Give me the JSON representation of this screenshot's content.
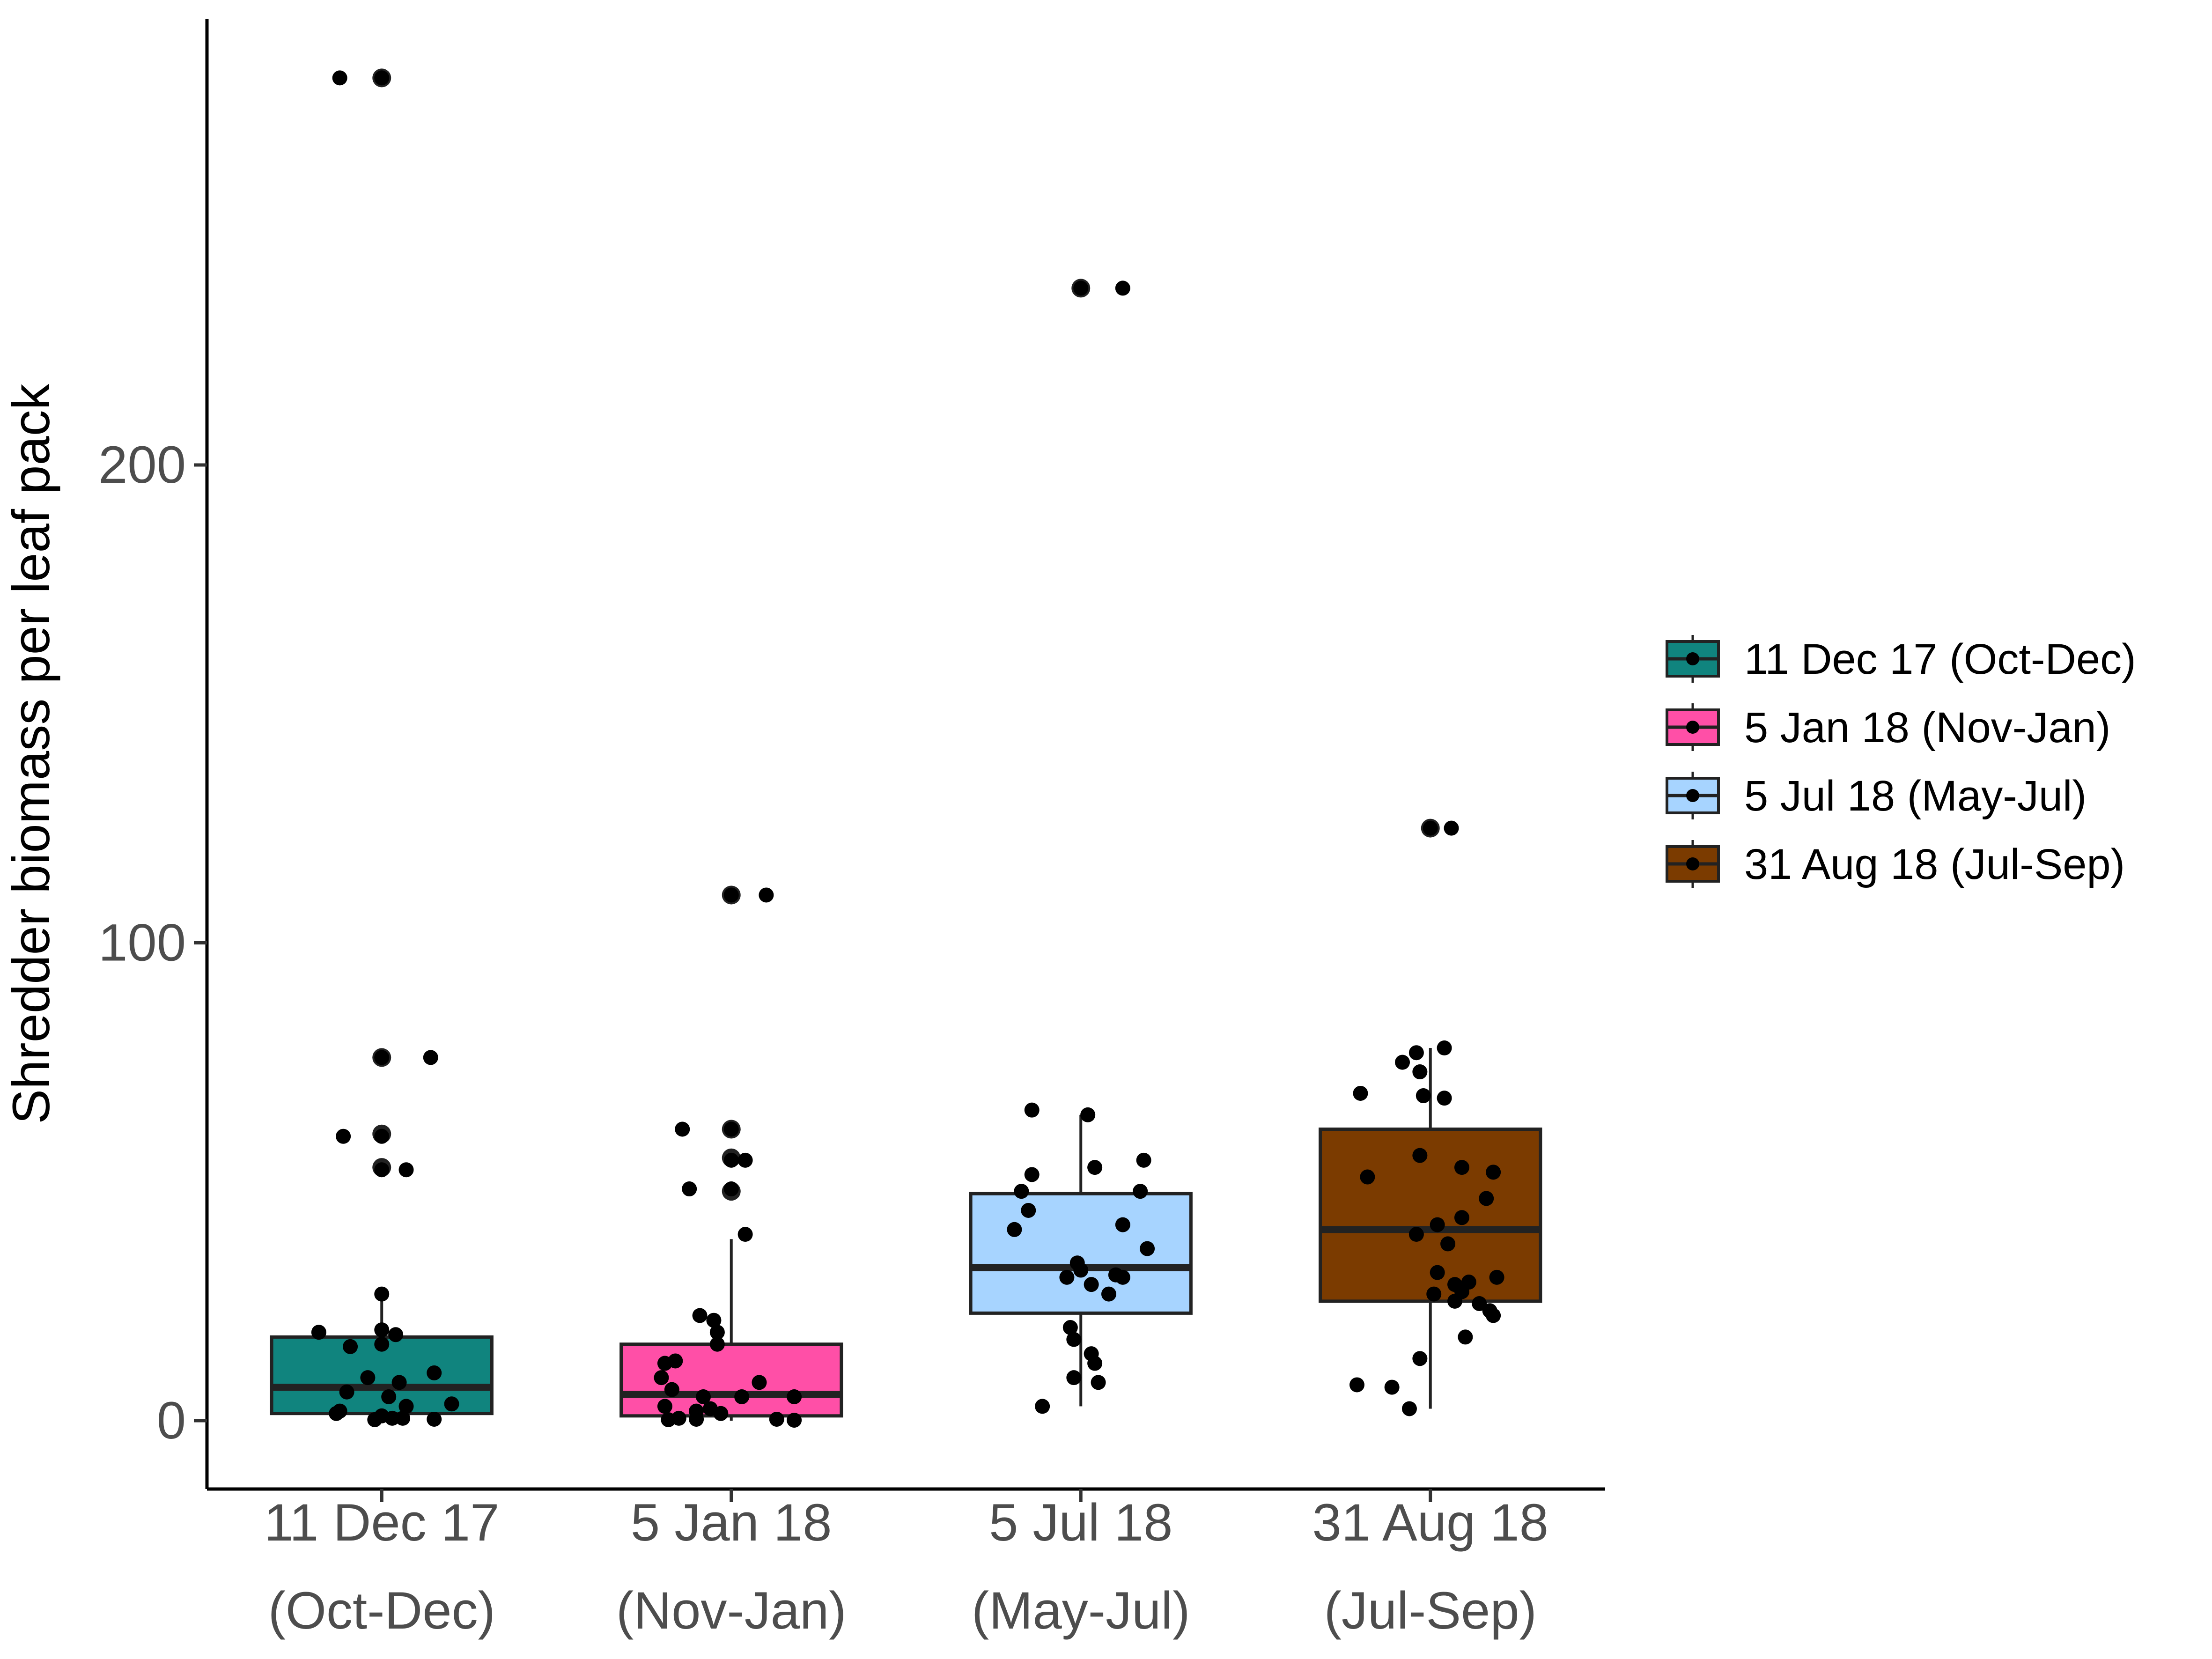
{
  "chart_data": {
    "type": "boxplot",
    "title": "",
    "xlabel": "",
    "ylabel": "Shredder biomass per leaf pack",
    "ylim": [
      -14,
      293
    ],
    "y_ticks": [
      0,
      100,
      200
    ],
    "grid": false,
    "legend_position": "right",
    "categories": [
      {
        "line1": "11 Dec 17",
        "line2": "(Oct-Dec)"
      },
      {
        "line1": "5 Jan 18",
        "line2": "(Nov-Jan)"
      },
      {
        "line1": "5 Jul 18",
        "line2": "(May-Jul)"
      },
      {
        "line1": "31 Aug 18",
        "line2": "(Jul-Sep)"
      }
    ],
    "series": [
      {
        "name": "11 Dec 17 (Oct-Dec)",
        "color": "#10847e",
        "q1": 1.5,
        "median": 7,
        "q3": 17.5,
        "whisker_low": 0,
        "whisker_high": 26,
        "outliers": [
          281,
          76,
          60,
          53
        ],
        "points": [
          [
            -0.12,
            281
          ],
          [
            0.0,
            281
          ],
          [
            0.14,
            76
          ],
          [
            0.0,
            76
          ],
          [
            -0.11,
            59.5
          ],
          [
            0.0,
            59.5
          ],
          [
            0.07,
            52.5
          ],
          [
            0.0,
            52.5
          ],
          [
            0.0,
            26.5
          ],
          [
            -0.18,
            18.5
          ],
          [
            0.0,
            19
          ],
          [
            0.04,
            18
          ],
          [
            -0.09,
            15.5
          ],
          [
            0.0,
            16
          ],
          [
            0.15,
            10
          ],
          [
            -0.04,
            9
          ],
          [
            0.05,
            8
          ],
          [
            -0.1,
            6
          ],
          [
            0.02,
            5
          ],
          [
            0.2,
            3.5
          ],
          [
            0.07,
            3
          ],
          [
            -0.12,
            2
          ],
          [
            -0.13,
            1.5
          ],
          [
            0.0,
            1
          ],
          [
            0.06,
            0.5
          ],
          [
            0.03,
            0.5
          ],
          [
            -0.02,
            0.2
          ],
          [
            0.15,
            0.3
          ]
        ]
      },
      {
        "name": "5 Jan 18 (Nov-Jan)",
        "color": "#ff4fa7",
        "q1": 1,
        "median": 5.5,
        "q3": 16,
        "whisker_low": 0,
        "whisker_high": 38,
        "outliers": [
          110,
          61,
          55,
          48
        ],
        "points": [
          [
            0.0,
            110
          ],
          [
            0.1,
            110
          ],
          [
            -0.14,
            61
          ],
          [
            0.0,
            61
          ],
          [
            0.0,
            54.5
          ],
          [
            0.04,
            54.5
          ],
          [
            -0.12,
            48.5
          ],
          [
            0.0,
            48.5
          ],
          [
            0.04,
            39
          ],
          [
            -0.09,
            22
          ],
          [
            -0.05,
            21
          ],
          [
            -0.04,
            18.5
          ],
          [
            -0.04,
            16
          ],
          [
            -0.16,
            12.5
          ],
          [
            -0.19,
            12
          ],
          [
            -0.2,
            9
          ],
          [
            0.08,
            8
          ],
          [
            -0.17,
            6.5
          ],
          [
            -0.08,
            5
          ],
          [
            0.03,
            5
          ],
          [
            0.18,
            5
          ],
          [
            -0.19,
            3
          ],
          [
            -0.06,
            2.5
          ],
          [
            -0.1,
            2
          ],
          [
            -0.03,
            1.5
          ],
          [
            -0.15,
            0.5
          ],
          [
            -0.18,
            0.2
          ],
          [
            -0.1,
            0.3
          ],
          [
            0.13,
            0.3
          ],
          [
            0.18,
            0.1
          ]
        ]
      },
      {
        "name": "5 Jul 18 (May-Jul)",
        "color": "#a7d4ff",
        "q1": 22.5,
        "median": 32,
        "q3": 47.5,
        "whisker_low": 3,
        "whisker_high": 64,
        "outliers": [
          237
        ],
        "points": [
          [
            0.0,
            237
          ],
          [
            0.12,
            237
          ],
          [
            -0.14,
            65
          ],
          [
            0.02,
            64
          ],
          [
            0.18,
            54.5
          ],
          [
            0.04,
            53
          ],
          [
            -0.14,
            51.5
          ],
          [
            -0.17,
            48
          ],
          [
            0.17,
            48
          ],
          [
            -0.15,
            44
          ],
          [
            0.12,
            41
          ],
          [
            -0.19,
            40
          ],
          [
            0.19,
            36
          ],
          [
            -0.01,
            33
          ],
          [
            0.0,
            31.5
          ],
          [
            0.1,
            30.5
          ],
          [
            -0.04,
            30
          ],
          [
            0.12,
            30
          ],
          [
            0.03,
            28.5
          ],
          [
            0.08,
            26.5
          ],
          [
            -0.03,
            19.5
          ],
          [
            -0.02,
            17
          ],
          [
            0.03,
            14
          ],
          [
            0.04,
            12
          ],
          [
            -0.02,
            9
          ],
          [
            0.05,
            8
          ],
          [
            -0.11,
            3
          ]
        ]
      },
      {
        "name": "31 Aug 18 (Jul-Sep)",
        "color": "#7b3b00",
        "q1": 25,
        "median": 40,
        "q3": 61,
        "whisker_low": 2.5,
        "whisker_high": 78,
        "outliers": [
          124
        ],
        "points": [
          [
            0.0,
            124
          ],
          [
            0.06,
            124
          ],
          [
            0.04,
            78
          ],
          [
            -0.04,
            77
          ],
          [
            -0.08,
            75
          ],
          [
            -0.03,
            73
          ],
          [
            -0.2,
            68.5
          ],
          [
            -0.02,
            68
          ],
          [
            0.04,
            67.5
          ],
          [
            -0.03,
            55.5
          ],
          [
            0.09,
            53
          ],
          [
            0.18,
            52
          ],
          [
            -0.18,
            51
          ],
          [
            0.16,
            46.5
          ],
          [
            0.09,
            42.5
          ],
          [
            0.02,
            41
          ],
          [
            -0.04,
            39
          ],
          [
            0.05,
            37
          ],
          [
            0.02,
            31
          ],
          [
            0.19,
            30
          ],
          [
            0.11,
            29
          ],
          [
            0.07,
            28.5
          ],
          [
            0.09,
            27
          ],
          [
            0.01,
            26.5
          ],
          [
            0.14,
            24.5
          ],
          [
            0.07,
            25
          ],
          [
            0.17,
            23
          ],
          [
            0.18,
            22
          ],
          [
            0.1,
            17.5
          ],
          [
            -0.03,
            13
          ],
          [
            -0.21,
            7.5
          ],
          [
            -0.11,
            7
          ],
          [
            -0.06,
            2.5
          ]
        ]
      }
    ]
  }
}
